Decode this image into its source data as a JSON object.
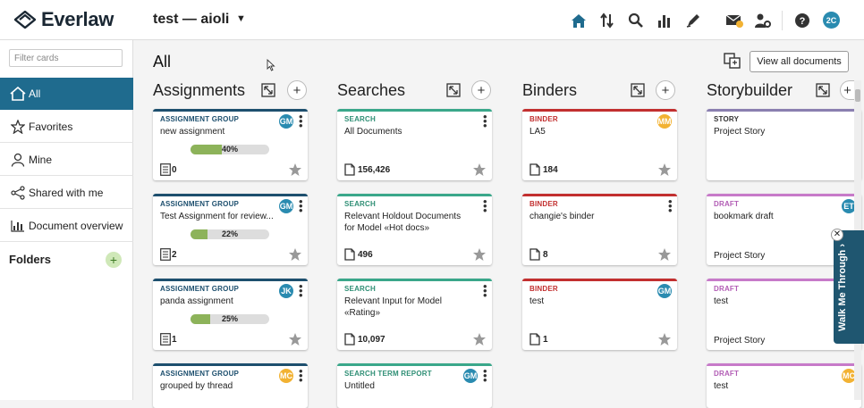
{
  "app": {
    "logo_text": "Everlaw",
    "case_name": "test — aioli"
  },
  "topbar": {
    "user_initials": "2C",
    "icons": [
      "home-icon",
      "sort-icon",
      "search-icon",
      "analytics-icon",
      "pen-icon",
      "mail-icon",
      "admin-icon",
      "help-icon"
    ]
  },
  "sidebar": {
    "filter_placeholder": "Filter cards",
    "items": [
      {
        "label": "All",
        "icon": "home-icon"
      },
      {
        "label": "Favorites",
        "icon": "star-icon"
      },
      {
        "label": "Mine",
        "icon": "person-icon"
      },
      {
        "label": "Shared with me",
        "icon": "share-icon"
      },
      {
        "label": "Document overview",
        "icon": "bar-chart-icon"
      }
    ],
    "folders_label": "Folders"
  },
  "main": {
    "title": "All",
    "view_all_label": "View all documents"
  },
  "columns": [
    {
      "title": "Assignments",
      "cards": [
        {
          "type": "ASSIGNMENT GROUP",
          "name": "new assignment",
          "initials": "GM",
          "avatar_color": "#2a8bb0",
          "progress": 40,
          "progress_label": "40%",
          "count": "0"
        },
        {
          "type": "ASSIGNMENT GROUP",
          "name": "Test Assignment for review...",
          "initials": "GM",
          "avatar_color": "#2a8bb0",
          "progress": 22,
          "progress_label": "22%",
          "count": "2"
        },
        {
          "type": "ASSIGNMENT GROUP",
          "name": "panda assignment",
          "initials": "JK",
          "avatar_color": "#2a8bb0",
          "progress": 25,
          "progress_label": "25%",
          "count": "1"
        },
        {
          "type": "ASSIGNMENT GROUP",
          "name": "grouped by thread",
          "initials": "MC",
          "avatar_color": "#f2b233"
        }
      ]
    },
    {
      "title": "Searches",
      "cards": [
        {
          "type": "SEARCH",
          "name": "All Documents",
          "count": "156,426"
        },
        {
          "type": "SEARCH",
          "name": "Relevant Holdout Documents for Model «Hot docs»",
          "count": "496"
        },
        {
          "type": "SEARCH",
          "name": "Relevant Input for Model «Rating»",
          "count": "10,097"
        },
        {
          "type": "SEARCH TERM REPORT",
          "name": "Untitled",
          "initials": "GM",
          "avatar_color": "#2a8bb0"
        }
      ]
    },
    {
      "title": "Binders",
      "cards": [
        {
          "type": "BINDER",
          "name": "LA5",
          "initials": "MM",
          "avatar_color": "#f2b233",
          "count": "184"
        },
        {
          "type": "BINDER",
          "name": "changie's binder",
          "count": "8"
        },
        {
          "type": "BINDER",
          "name": "test",
          "initials": "GM",
          "avatar_color": "#2a8bb0",
          "count": "1"
        }
      ]
    },
    {
      "title": "Storybuilder",
      "cards": [
        {
          "type": "STORY",
          "name": "Project Story"
        },
        {
          "type": "DRAFT",
          "name": "bookmark draft",
          "initials": "ET",
          "avatar_color": "#2a8bb0",
          "footer": "Project Story"
        },
        {
          "type": "DRAFT",
          "name": "test",
          "footer": "Project Story"
        },
        {
          "type": "DRAFT",
          "name": "test",
          "initials": "MC",
          "avatar_color": "#f2b233"
        }
      ]
    }
  ],
  "colors": {
    "assignment": "#1d4f6e",
    "search": "#3aa78a",
    "binder": "#c22f2f",
    "story": "#8a7fb0",
    "draft": "#c77ac9",
    "accent": "#1f6b8e"
  },
  "walkthrough": {
    "label": "Walk Me Through"
  }
}
